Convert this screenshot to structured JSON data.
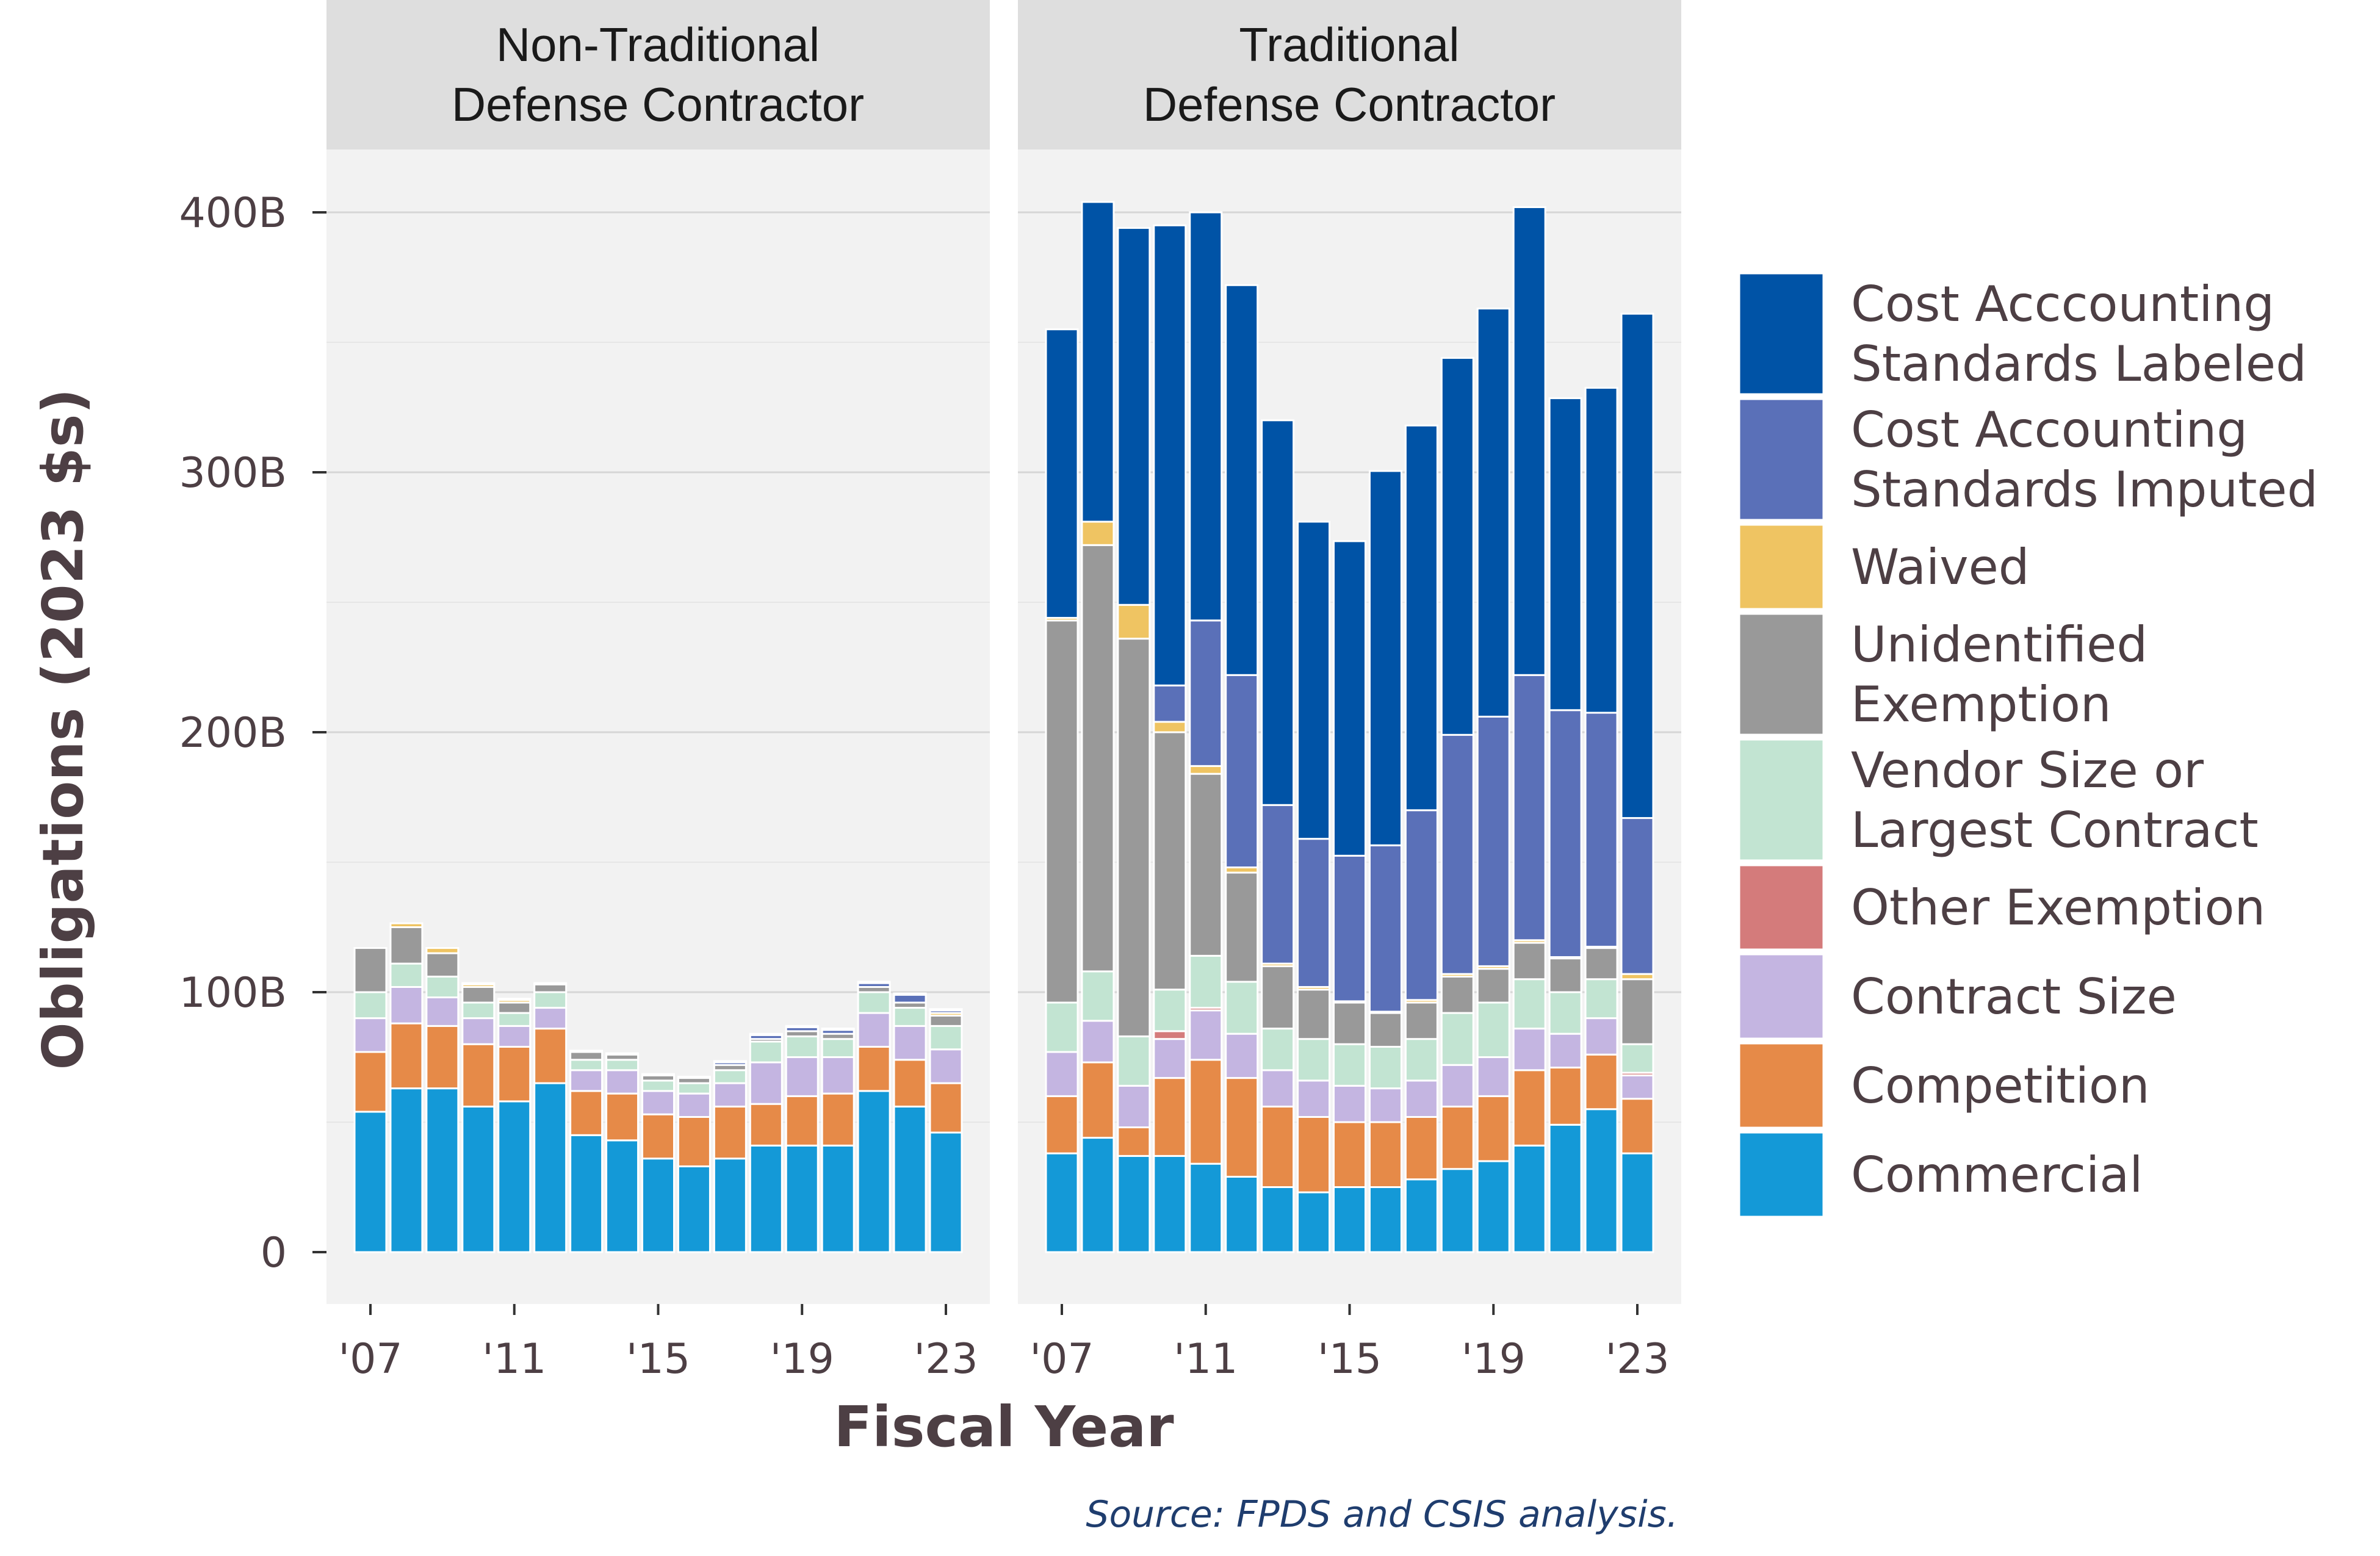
{
  "chart_data": {
    "type": "bar",
    "stacked": true,
    "facet_titles": [
      [
        "Non-Traditional",
        "Defense Contractor"
      ],
      [
        "Traditional",
        "Defense Contractor"
      ]
    ],
    "xlabel": "Fiscal Year",
    "ylabel": "Obligations (2023 $s)",
    "ylim": [
      0,
      400
    ],
    "ytick_values": [
      0,
      100,
      200,
      300,
      400
    ],
    "ytick_labels": [
      "0",
      "100B",
      "200B",
      "300B",
      "400B"
    ],
    "xtick_values": [
      2007,
      2011,
      2015,
      2019,
      2023
    ],
    "xtick_labels": [
      "'07",
      "'11",
      "'15",
      "'19",
      "'23"
    ],
    "years": [
      2007,
      2008,
      2009,
      2010,
      2011,
      2012,
      2013,
      2014,
      2015,
      2016,
      2017,
      2018,
      2019,
      2020,
      2021,
      2022,
      2023
    ],
    "source": "Source: FPDS and CSIS analysis.",
    "legend_position": "right",
    "legend": [
      {
        "label": [
          "Cost Acccounting",
          "Standards Labeled"
        ],
        "color": "#0053a6"
      },
      {
        "label": [
          "Cost Accounting",
          "Standards Imputed"
        ],
        "color": "#5a70b8"
      },
      {
        "label": [
          "Waived"
        ],
        "color": "#efc462"
      },
      {
        "label": [
          "Unidentified",
          "Exemption"
        ],
        "color": "#999999"
      },
      {
        "label": [
          "Vendor Size or",
          "Largest Contract"
        ],
        "color": "#c2e4d2"
      },
      {
        "label": [
          "Other Exemption"
        ],
        "color": "#d47b7b"
      },
      {
        "label": [
          "Contract Size"
        ],
        "color": "#c4b5e1"
      },
      {
        "label": [
          "Competition"
        ],
        "color": "#e68a48"
      },
      {
        "label": [
          "Commercial"
        ],
        "color": "#1499d7"
      }
    ],
    "series_order_bottom_to_top": [
      "Commercial",
      "Competition",
      "Contract Size",
      "Other Exemption",
      "Vendor Size or Largest Contract",
      "Unidentified Exemption",
      "Waived",
      "Cost Accounting Standards Imputed",
      "Cost Acccounting Standards Labeled"
    ],
    "panels": [
      {
        "series": [
          {
            "name": "Commercial",
            "color": "#1499d7",
            "values": [
              54,
              63,
              63,
              56,
              58,
              65,
              45,
              43,
              36,
              33,
              36,
              41,
              41,
              41,
              62,
              56,
              46
            ]
          },
          {
            "name": "Competition",
            "color": "#e68a48",
            "values": [
              23,
              25,
              24,
              24,
              21,
              21,
              17,
              18,
              17,
              19,
              20,
              16,
              19,
              20,
              17,
              18,
              19
            ]
          },
          {
            "name": "Contract Size",
            "color": "#c4b5e1",
            "values": [
              13,
              14,
              11,
              10,
              8,
              8,
              8,
              9,
              9,
              9,
              9,
              16,
              15,
              14,
              13,
              13,
              13
            ]
          },
          {
            "name": "Other Exemption",
            "color": "#d47b7b",
            "values": [
              0,
              0,
              0,
              0,
              0,
              0,
              0,
              0,
              0,
              0,
              0,
              0,
              0,
              0,
              0,
              0,
              0
            ]
          },
          {
            "name": "Vendor Size or Largest Contract",
            "color": "#c2e4d2",
            "values": [
              10,
              9,
              8,
              6,
              5,
              6,
              4,
              4,
              4,
              4,
              5,
              8,
              8,
              7,
              8,
              7,
              9
            ]
          },
          {
            "name": "Unidentified Exemption",
            "color": "#999999",
            "values": [
              17,
              14,
              9,
              6,
              4,
              3,
              3,
              2,
              2,
              2,
              2,
              1,
              2,
              2,
              2,
              2,
              4
            ]
          },
          {
            "name": "Waived",
            "color": "#efc462",
            "values": [
              0,
              1.5,
              2,
              1,
              1,
              0,
              0,
              0,
              0,
              0,
              0,
              0,
              0,
              0,
              0,
              0,
              1
            ]
          },
          {
            "name": "Cost Accounting Standards Imputed",
            "color": "#5a70b8",
            "values": [
              0,
              0,
              0,
              0,
              0,
              0,
              0,
              0,
              0,
              0,
              1,
              1.5,
              1.5,
              1.5,
              1.5,
              3,
              1
            ]
          },
          {
            "name": "Cost Acccounting Standards Labeled",
            "color": "#0053a6",
            "values": [
              0,
              0,
              0,
              0.5,
              0.5,
              0.5,
              0.5,
              0.5,
              0.5,
              0.5,
              0.5,
              0.5,
              0.5,
              0.5,
              0.5,
              0.5,
              0.5
            ]
          }
        ]
      },
      {
        "series": [
          {
            "name": "Commercial",
            "color": "#1499d7",
            "values": [
              38,
              44,
              37,
              37,
              34,
              29,
              25,
              23,
              25,
              25,
              28,
              32,
              35,
              41,
              49,
              55,
              38
            ]
          },
          {
            "name": "Competition",
            "color": "#e68a48",
            "values": [
              22,
              29,
              11,
              30,
              40,
              38,
              31,
              29,
              25,
              25,
              24,
              24,
              25,
              29,
              22,
              21,
              21
            ]
          },
          {
            "name": "Contract Size",
            "color": "#c4b5e1",
            "values": [
              17,
              16,
              16,
              15,
              19,
              17,
              14,
              14,
              14,
              13,
              14,
              16,
              15,
              16,
              13,
              14,
              9
            ]
          },
          {
            "name": "Other Exemption",
            "color": "#d47b7b",
            "values": [
              0,
              0,
              0,
              3,
              1,
              0,
              0,
              0,
              0,
              0,
              0,
              0,
              0,
              0,
              0,
              0,
              1
            ]
          },
          {
            "name": "Vendor Size or Largest Contract",
            "color": "#c2e4d2",
            "values": [
              19,
              19,
              19,
              16,
              20,
              20,
              16,
              16,
              16,
              16,
              16,
              20,
              21,
              19,
              16,
              15,
              11
            ]
          },
          {
            "name": "Unidentified Exemption",
            "color": "#999999",
            "values": [
              147,
              164,
              153,
              99,
              70,
              42,
              24,
              19,
              16,
              13,
              14,
              14,
              13,
              14,
              13,
              12,
              25
            ]
          },
          {
            "name": "Waived",
            "color": "#efc462",
            "values": [
              1,
              9,
              13,
              4,
              3,
              2,
              1,
              1,
              0.5,
              0.5,
              1,
              1,
              1,
              1,
              0.5,
              0.5,
              2
            ]
          },
          {
            "name": "Cost Accounting Standards Imputed",
            "color": "#5a70b8",
            "values": [
              0,
              0,
              0,
              14,
              56,
              74,
              61,
              57,
              56,
              64,
              73,
              92,
              96,
              102,
              95,
              90,
              60
            ]
          },
          {
            "name": "Cost Acccounting Standards Labeled",
            "color": "#0053a6",
            "values": [
              111,
              123,
              145,
              177,
              157,
              150,
              148,
              122,
              121,
              144,
              148,
              145,
              157,
              180,
              120,
              125,
              194
            ]
          }
        ]
      }
    ]
  }
}
